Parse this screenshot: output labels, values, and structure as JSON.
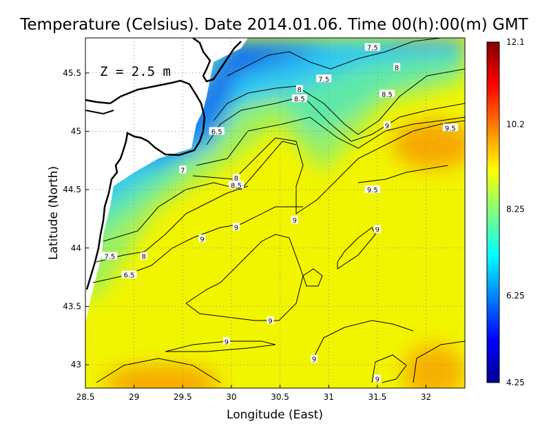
{
  "chart_data": {
    "type": "heatmap",
    "title": "Temperature (Celsius). Date 2014.01.06. Time 00(h):00(m)  GMT",
    "xlabel": "Longitude (East)",
    "ylabel": "Latitude (North)",
    "annotation": "Z = 2.5 m",
    "xlim": [
      28.5,
      32.4
    ],
    "ylim": [
      42.8,
      45.8
    ],
    "x_ticks": [
      {
        "value": 28.5,
        "label": "28.5"
      },
      {
        "value": 29,
        "label": "29"
      },
      {
        "value": 29.5,
        "label": "29.5"
      },
      {
        "value": 30,
        "label": "30"
      },
      {
        "value": 30.5,
        "label": "30.5"
      },
      {
        "value": 31,
        "label": "31"
      },
      {
        "value": 31.5,
        "label": "31.5"
      },
      {
        "value": 32,
        "label": "32"
      }
    ],
    "y_ticks": [
      {
        "value": 43,
        "label": "43"
      },
      {
        "value": 43.5,
        "label": "43.5"
      },
      {
        "value": 44,
        "label": "44"
      },
      {
        "value": 44.5,
        "label": "44.5"
      },
      {
        "value": 45,
        "label": "45"
      },
      {
        "value": 45.5,
        "label": "45.5"
      }
    ],
    "grid": true,
    "colorbar": {
      "min": 4.25,
      "max": 12.1,
      "ticks": [
        {
          "value": 12.1,
          "label": "12.1"
        },
        {
          "value": 10.2,
          "label": "10.2"
        },
        {
          "value": 8.25,
          "label": "8.25"
        },
        {
          "value": 6.25,
          "label": "6.25"
        },
        {
          "value": 4.25,
          "label": "4.25"
        }
      ],
      "colormap": [
        "#00008f",
        "#0000ff",
        "#0080ff",
        "#00ffff",
        "#80ff80",
        "#ffff00",
        "#ff8000",
        "#ff0000",
        "#800000"
      ],
      "placement": "right"
    },
    "contour_labels": [
      {
        "text": "7.5",
        "lon": 31.45,
        "lat": 45.72
      },
      {
        "text": "8",
        "lon": 31.7,
        "lat": 45.55
      },
      {
        "text": "7.5",
        "lon": 30.95,
        "lat": 45.45
      },
      {
        "text": "8",
        "lon": 30.7,
        "lat": 45.36
      },
      {
        "text": "8.5",
        "lon": 30.7,
        "lat": 45.28
      },
      {
        "text": "8.5",
        "lon": 31.6,
        "lat": 45.32
      },
      {
        "text": "9",
        "lon": 31.6,
        "lat": 45.05
      },
      {
        "text": "9.5",
        "lon": 32.25,
        "lat": 45.03
      },
      {
        "text": "6.5",
        "lon": 29.85,
        "lat": 45.0
      },
      {
        "text": "7",
        "lon": 29.5,
        "lat": 44.67
      },
      {
        "text": "8",
        "lon": 30.05,
        "lat": 44.6
      },
      {
        "text": "8.5",
        "lon": 30.05,
        "lat": 44.54
      },
      {
        "text": "9.5",
        "lon": 31.45,
        "lat": 44.5
      },
      {
        "text": "9",
        "lon": 30.65,
        "lat": 44.24
      },
      {
        "text": "9",
        "lon": 30.05,
        "lat": 44.18
      },
      {
        "text": "9",
        "lon": 31.5,
        "lat": 44.16
      },
      {
        "text": "9",
        "lon": 29.7,
        "lat": 44.08
      },
      {
        "text": "7.5",
        "lon": 28.75,
        "lat": 43.93
      },
      {
        "text": "8",
        "lon": 29.1,
        "lat": 43.93
      },
      {
        "text": "6.5",
        "lon": 28.95,
        "lat": 43.77
      },
      {
        "text": "9",
        "lon": 30.4,
        "lat": 43.38
      },
      {
        "text": "9",
        "lon": 29.95,
        "lat": 43.2
      },
      {
        "text": "9",
        "lon": 30.85,
        "lat": 43.05
      },
      {
        "text": "9",
        "lon": 31.5,
        "lat": 42.88
      }
    ]
  }
}
